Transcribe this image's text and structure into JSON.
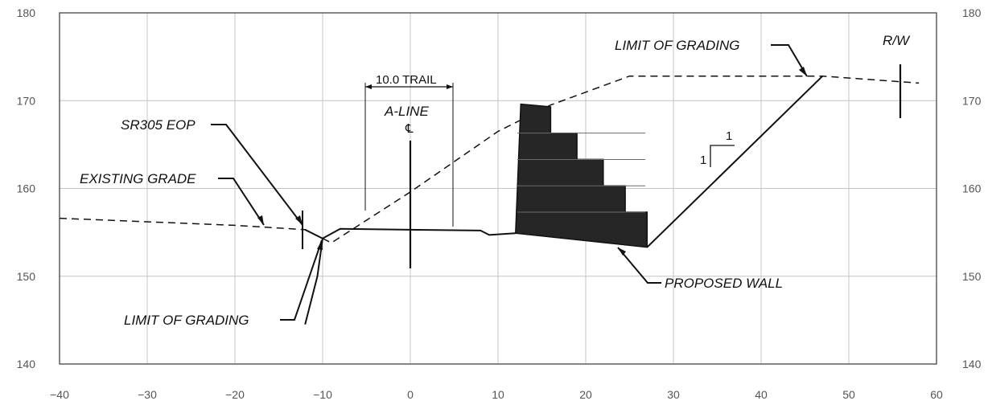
{
  "chart_data": {
    "type": "line",
    "x_ticks": [
      "−40",
      "−30",
      "−20",
      "−10",
      "0",
      "10",
      "20",
      "30",
      "40",
      "50",
      "60"
    ],
    "y_ticks_left": [
      "140",
      "150",
      "160",
      "170",
      "180"
    ],
    "y_ticks_right": [
      "140",
      "150",
      "160",
      "170",
      "180"
    ],
    "xlim": [
      -40,
      60
    ],
    "ylim": [
      140,
      180
    ],
    "grid": true,
    "series": [
      {
        "style": "dashed",
        "points": [
          [
            -40,
            156.6
          ],
          [
            -30,
            156.2
          ],
          [
            -20,
            155.8
          ],
          [
            -12,
            155.3
          ],
          [
            -9,
            153.8
          ],
          [
            0,
            159.6
          ],
          [
            10,
            166.5
          ],
          [
            16,
            169.5
          ],
          [
            25,
            172.8
          ],
          [
            47,
            172.8
          ],
          [
            58,
            172.0
          ]
        ]
      },
      {
        "style": "solid",
        "points": [
          [
            -12,
            155.3
          ],
          [
            -10,
            154.3
          ],
          [
            -8,
            155.4
          ],
          [
            8,
            155.2
          ],
          [
            9,
            154.7
          ],
          [
            12,
            154.9
          ]
        ]
      },
      {
        "style": "solid",
        "points": [
          [
            -12,
            144.5
          ],
          [
            -10.6,
            150
          ],
          [
            -10,
            154.3
          ]
        ]
      },
      {
        "style": "solid",
        "points": [
          [
            27,
            153.3
          ],
          [
            47,
            172.8
          ]
        ]
      }
    ],
    "wall": [
      [
        12,
        154.9
      ],
      [
        12.6,
        169.6
      ],
      [
        16,
        169.3
      ],
      [
        16,
        166.3
      ],
      [
        19,
        166.3
      ],
      [
        19,
        163.3
      ],
      [
        22,
        163.3
      ],
      [
        22,
        160.3
      ],
      [
        24.5,
        160.3
      ],
      [
        24.5,
        157.3
      ],
      [
        27,
        157.3
      ],
      [
        27,
        153.3
      ],
      [
        12,
        154.9
      ]
    ],
    "annotations": {
      "limit_of_grading_top": "LIMIT OF GRADING",
      "rw": "R/W",
      "trail": "10.0 TRAIL",
      "a_line": "A-LINE",
      "centerline": "℄",
      "sr305_eop": "SR305 EOP",
      "existing_grade": "EXISTING GRADE",
      "limit_of_grading_bottom": "LIMIT OF GRADING",
      "proposed_wall": "PROPOSED WALL",
      "slope_rise": "1",
      "slope_run": "1"
    }
  }
}
